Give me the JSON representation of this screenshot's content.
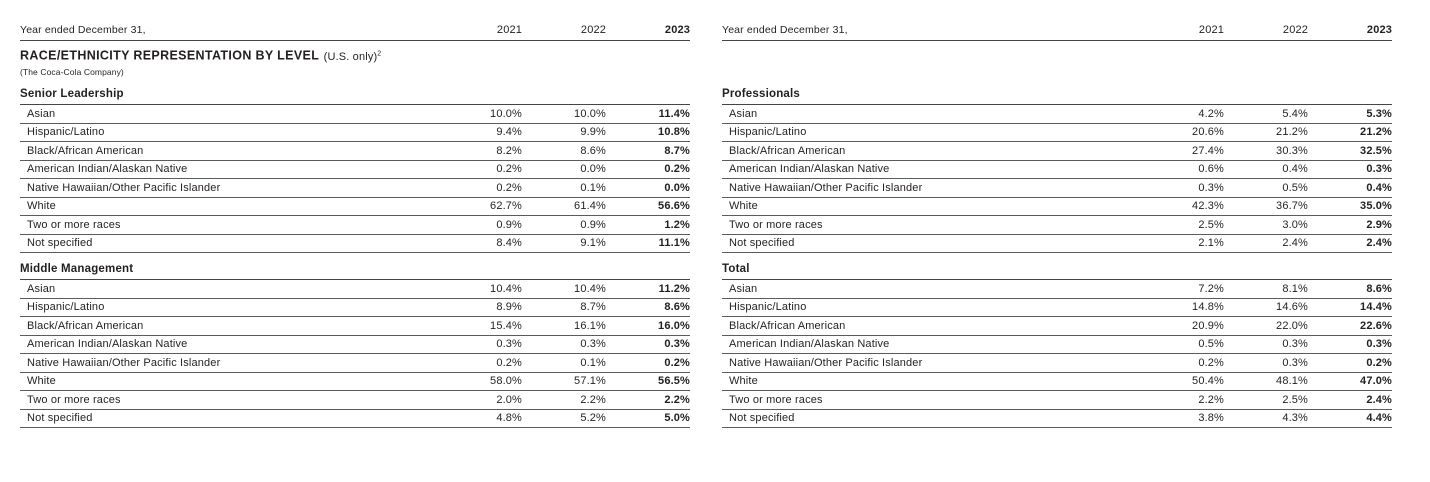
{
  "header": {
    "label": "Year ended December 31,",
    "years": [
      "2021",
      "2022",
      "2023"
    ]
  },
  "title": {
    "main": "RACE/ETHNICITY REPRESENTATION BY LEVEL",
    "scope_note": "(U.S. only)",
    "footnote_marker": "2",
    "subtitle": "(The Coca-Cola Company)"
  },
  "sections": [
    {
      "name": "Senior Leadership",
      "rows": [
        [
          "Asian",
          "10.0%",
          "10.0%",
          "11.4%"
        ],
        [
          "Hispanic/Latino",
          "9.4%",
          "9.9%",
          "10.8%"
        ],
        [
          "Black/African American",
          "8.2%",
          "8.6%",
          "8.7%"
        ],
        [
          "American Indian/Alaskan Native",
          "0.2%",
          "0.0%",
          "0.2%"
        ],
        [
          "Native Hawaiian/Other Pacific Islander",
          "0.2%",
          "0.1%",
          "0.0%"
        ],
        [
          "White",
          "62.7%",
          "61.4%",
          "56.6%"
        ],
        [
          "Two or more races",
          "0.9%",
          "0.9%",
          "1.2%"
        ],
        [
          "Not specified",
          "8.4%",
          "9.1%",
          "11.1%"
        ]
      ]
    },
    {
      "name": "Middle Management",
      "rows": [
        [
          "Asian",
          "10.4%",
          "10.4%",
          "11.2%"
        ],
        [
          "Hispanic/Latino",
          "8.9%",
          "8.7%",
          "8.6%"
        ],
        [
          "Black/African American",
          "15.4%",
          "16.1%",
          "16.0%"
        ],
        [
          "American Indian/Alaskan Native",
          "0.3%",
          "0.3%",
          "0.3%"
        ],
        [
          "Native Hawaiian/Other Pacific Islander",
          "0.2%",
          "0.1%",
          "0.2%"
        ],
        [
          "White",
          "58.0%",
          "57.1%",
          "56.5%"
        ],
        [
          "Two or more races",
          "2.0%",
          "2.2%",
          "2.2%"
        ],
        [
          "Not specified",
          "4.8%",
          "5.2%",
          "5.0%"
        ]
      ]
    },
    {
      "name": "Professionals",
      "rows": [
        [
          "Asian",
          "4.2%",
          "5.4%",
          "5.3%"
        ],
        [
          "Hispanic/Latino",
          "20.6%",
          "21.2%",
          "21.2%"
        ],
        [
          "Black/African American",
          "27.4%",
          "30.3%",
          "32.5%"
        ],
        [
          "American Indian/Alaskan Native",
          "0.6%",
          "0.4%",
          "0.3%"
        ],
        [
          "Native Hawaiian/Other Pacific Islander",
          "0.3%",
          "0.5%",
          "0.4%"
        ],
        [
          "White",
          "42.3%",
          "36.7%",
          "35.0%"
        ],
        [
          "Two or more races",
          "2.5%",
          "3.0%",
          "2.9%"
        ],
        [
          "Not specified",
          "2.1%",
          "2.4%",
          "2.4%"
        ]
      ]
    },
    {
      "name": "Total",
      "rows": [
        [
          "Asian",
          "7.2%",
          "8.1%",
          "8.6%"
        ],
        [
          "Hispanic/Latino",
          "14.8%",
          "14.6%",
          "14.4%"
        ],
        [
          "Black/African American",
          "20.9%",
          "22.0%",
          "22.6%"
        ],
        [
          "American Indian/Alaskan Native",
          "0.5%",
          "0.3%",
          "0.3%"
        ],
        [
          "Native Hawaiian/Other Pacific Islander",
          "0.2%",
          "0.3%",
          "0.2%"
        ],
        [
          "White",
          "50.4%",
          "48.1%",
          "47.0%"
        ],
        [
          "Two or more races",
          "2.2%",
          "2.5%",
          "2.4%"
        ],
        [
          "Not specified",
          "3.8%",
          "4.3%",
          "4.4%"
        ]
      ]
    }
  ],
  "colors": {
    "text": "#231f20",
    "rule_dark": "#454547",
    "rule_light": "#5a5b5e"
  }
}
